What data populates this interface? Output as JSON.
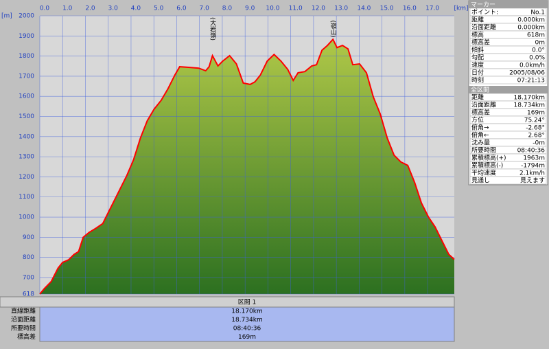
{
  "chart_data": {
    "type": "area",
    "x_label": "[km]",
    "y_label": "[m]",
    "x": [
      0,
      0.2,
      0.5,
      0.8,
      1.0,
      1.26,
      1.5,
      1.7,
      1.9,
      2.16,
      2.46,
      2.76,
      3.06,
      3.36,
      3.81,
      4.11,
      4.41,
      4.71,
      5.01,
      5.32,
      5.62,
      5.92,
      6.13,
      6.52,
      6.97,
      7.27,
      7.42,
      7.57,
      7.81,
      8.02,
      8.32,
      8.62,
      8.92,
      9.22,
      9.43,
      9.67,
      9.97,
      10.27,
      10.57,
      10.87,
      11.11,
      11.32,
      11.62,
      11.92,
      12.13,
      12.37,
      12.61,
      12.85,
      13.03,
      13.27,
      13.51,
      13.72,
      14.02,
      14.32,
      14.62,
      14.92,
      15.23,
      15.53,
      15.83,
      16.13,
      16.43,
      16.73,
      17.03,
      17.33,
      17.63,
      17.93,
      18.17
    ],
    "values": [
      618,
      645,
      680,
      747,
      775,
      788,
      815,
      829,
      900,
      924,
      945,
      968,
      1036,
      1104,
      1206,
      1285,
      1393,
      1479,
      1536,
      1580,
      1638,
      1706,
      1747,
      1744,
      1740,
      1727,
      1747,
      1802,
      1751,
      1775,
      1802,
      1761,
      1666,
      1659,
      1672,
      1706,
      1775,
      1808,
      1775,
      1734,
      1679,
      1717,
      1723,
      1751,
      1757,
      1829,
      1853,
      1883,
      1842,
      1853,
      1836,
      1757,
      1761,
      1717,
      1597,
      1513,
      1393,
      1308,
      1274,
      1257,
      1172,
      1070,
      1002,
      951,
      883,
      815,
      790
    ],
    "color": "#ff0000",
    "xlim": [
      0,
      18.17
    ],
    "ylim": [
      618,
      2000
    ],
    "xticks": [
      {
        "value": 0,
        "label": "0.0"
      },
      {
        "value": 1,
        "label": "1.0"
      },
      {
        "value": 2,
        "label": "2.0"
      },
      {
        "value": 3,
        "label": "3.0"
      },
      {
        "value": 4,
        "label": "4.0"
      },
      {
        "value": 5,
        "label": "5.0"
      },
      {
        "value": 6,
        "label": "6.0"
      },
      {
        "value": 7,
        "label": "7.0"
      },
      {
        "value": 8,
        "label": "8.0"
      },
      {
        "value": 9,
        "label": "9.0"
      },
      {
        "value": 10,
        "label": "10.0"
      },
      {
        "value": 11,
        "label": "11.0"
      },
      {
        "value": 12,
        "label": "12.0"
      },
      {
        "value": 13,
        "label": "13.0"
      },
      {
        "value": 14,
        "label": "14.0"
      },
      {
        "value": 15,
        "label": "15.0"
      },
      {
        "value": 16,
        "label": "16.0"
      },
      {
        "value": 17,
        "label": "17.0"
      }
    ],
    "yticks": [
      618,
      700,
      800,
      900,
      1000,
      1100,
      1200,
      1300,
      1400,
      1500,
      1600,
      1700,
      1800,
      1900,
      2000
    ],
    "grid": true,
    "annotations": [
      {
        "x": 7.57,
        "text": "(大岩嶺)"
      },
      {
        "x": 12.85,
        "text": "(嶺山)"
      }
    ]
  },
  "segment_table": {
    "title": "区間 1",
    "rows": [
      [
        "直線距離",
        "18.170km"
      ],
      [
        "沿面距離",
        "18.734km"
      ],
      [
        "所要時間",
        "08:40:36"
      ],
      [
        "標高差",
        "169m"
      ]
    ]
  },
  "marker_panel": {
    "title": "マーカー",
    "rows": [
      [
        "ポイント:",
        "No.1"
      ],
      [
        "距離",
        "0.000km"
      ],
      [
        "沿面距離",
        "0.000km"
      ],
      [
        "標高",
        "618m"
      ],
      [
        "標高差",
        "0m"
      ],
      [
        "傾斜",
        "0.0°"
      ],
      [
        "勾配",
        "0.0%"
      ],
      [
        "速度",
        "0.0km/h"
      ],
      [
        "日付",
        "2005/08/06"
      ],
      [
        "時刻",
        "07:21:13"
      ]
    ]
  },
  "total_panel": {
    "title": "全区間",
    "rows": [
      [
        "距離",
        "18.170km"
      ],
      [
        "沿面距離",
        "18.734km"
      ],
      [
        "標高差",
        "169m"
      ],
      [
        "方位",
        "75.24°"
      ],
      [
        "俯角→",
        "-2.68°"
      ],
      [
        "俯角←",
        "2.68°"
      ],
      [
        "沈み量",
        "-0m"
      ],
      [
        "所要時間",
        "08:40:36"
      ],
      [
        "累積標高(+)",
        "1963m"
      ],
      [
        "累積標高(-)",
        "-1794m"
      ],
      [
        "平均速度",
        "2.1km/h"
      ],
      [
        "見通し",
        "見えます"
      ]
    ]
  }
}
